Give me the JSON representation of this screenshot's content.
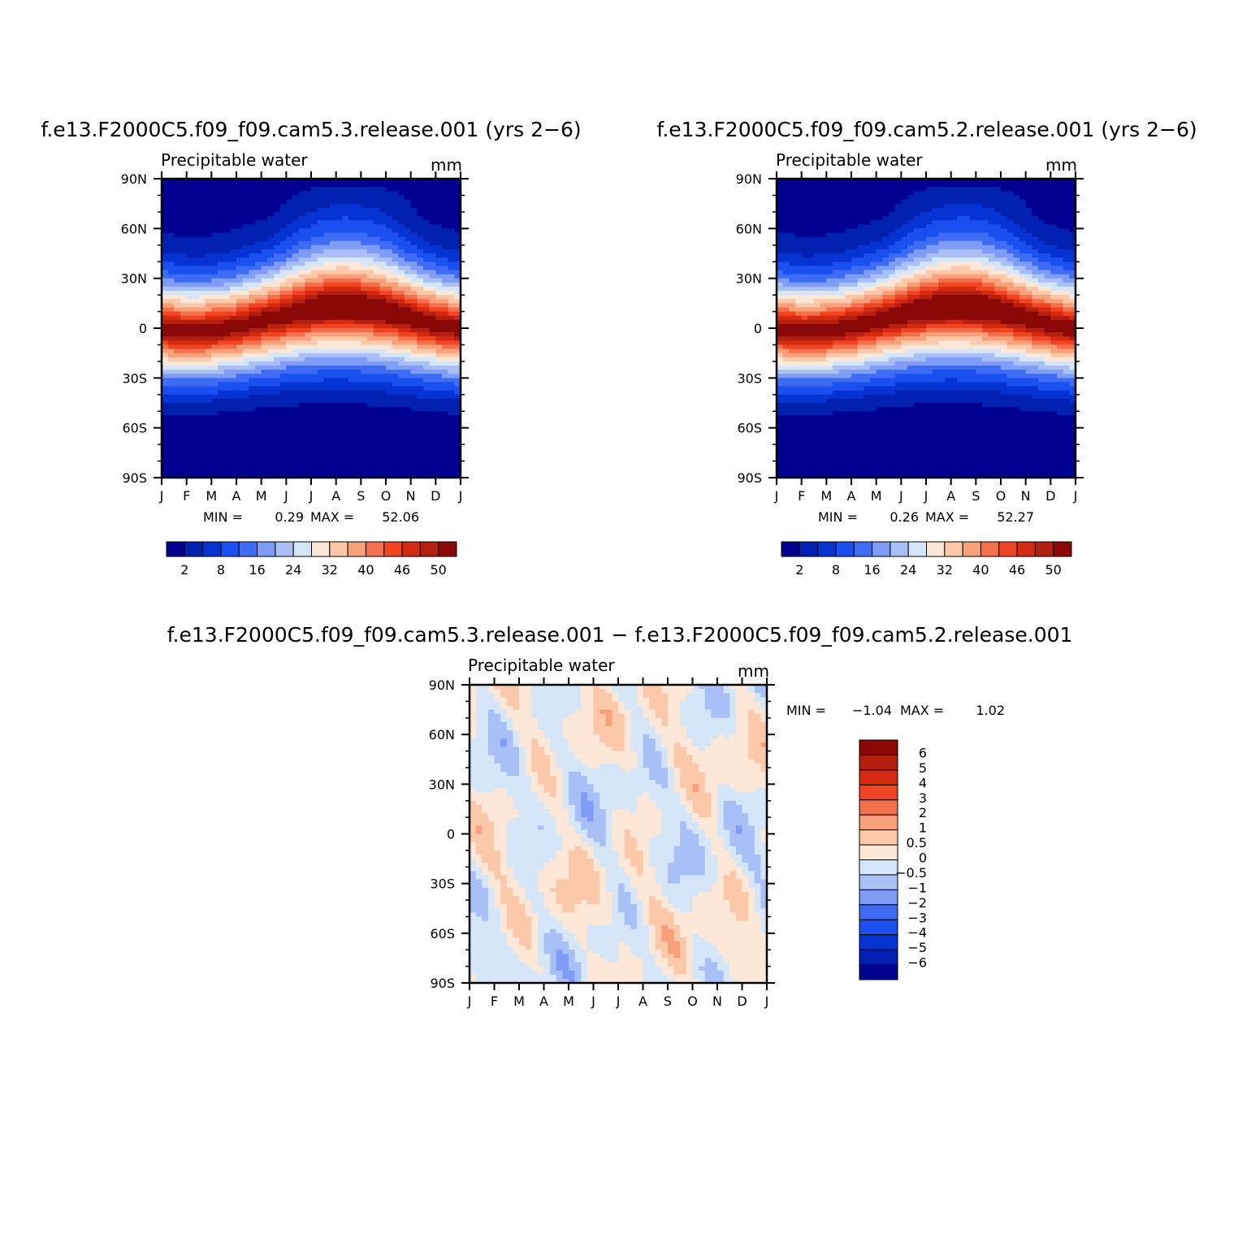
{
  "chart_data": [
    {
      "type": "heatmap",
      "case_title": "f.e13.F2000C5.f09_f09.cam5.3.release.001 (yrs 2−6)",
      "left_label": "Precipitable water",
      "right_label": "mm",
      "x_ticks": [
        "J",
        "F",
        "M",
        "A",
        "M",
        "J",
        "J",
        "A",
        "S",
        "O",
        "N",
        "D",
        "J"
      ],
      "y_ticks": [
        "90N",
        "60N",
        "30N",
        "0",
        "30S",
        "60S",
        "90S"
      ],
      "ylim": [
        -90,
        90
      ],
      "min_label": "MIN =",
      "min_value": "0.29",
      "max_label": "MAX =",
      "max_value": "52.06",
      "zmin": 0.29,
      "zmax": 52.06,
      "colorbar_labels": [
        "2",
        "8",
        "16",
        "24",
        "32",
        "40",
        "46",
        "50"
      ],
      "colorbar_colors": [
        "#000090",
        "#0020b0",
        "#0733d3",
        "#1a4ff0",
        "#3e6cf5",
        "#7f9cf7",
        "#a9c0f7",
        "#d6e6f9",
        "#fde8d8",
        "#fcc8aa",
        "#f7a07a",
        "#f2704c",
        "#f14422",
        "#d42a12",
        "#b51f10",
        "#8a0808"
      ]
    },
    {
      "type": "heatmap",
      "case_title": "f.e13.F2000C5.f09_f09.cam5.2.release.001 (yrs 2−6)",
      "left_label": "Precipitable water",
      "right_label": "mm",
      "x_ticks": [
        "J",
        "F",
        "M",
        "A",
        "M",
        "J",
        "J",
        "A",
        "S",
        "O",
        "N",
        "D",
        "J"
      ],
      "y_ticks": [
        "90N",
        "60N",
        "30N",
        "0",
        "30S",
        "60S",
        "90S"
      ],
      "ylim": [
        -90,
        90
      ],
      "min_label": "MIN =",
      "min_value": "0.26",
      "max_label": "MAX =",
      "max_value": "52.27",
      "zmin": 0.26,
      "zmax": 52.27,
      "colorbar_labels": [
        "2",
        "8",
        "16",
        "24",
        "32",
        "40",
        "46",
        "50"
      ],
      "colorbar_colors": [
        "#000090",
        "#0020b0",
        "#0733d3",
        "#1a4ff0",
        "#3e6cf5",
        "#7f9cf7",
        "#a9c0f7",
        "#d6e6f9",
        "#fde8d8",
        "#fcc8aa",
        "#f7a07a",
        "#f2704c",
        "#f14422",
        "#d42a12",
        "#b51f10",
        "#8a0808"
      ]
    },
    {
      "type": "heatmap",
      "case_title": "f.e13.F2000C5.f09_f09.cam5.3.release.001 − f.e13.F2000C5.f09_f09.cam5.2.release.001",
      "left_label": "Precipitable water",
      "right_label": "mm",
      "x_ticks": [
        "J",
        "F",
        "M",
        "A",
        "M",
        "J",
        "J",
        "A",
        "S",
        "O",
        "N",
        "D",
        "J"
      ],
      "y_ticks": [
        "90N",
        "60N",
        "30N",
        "0",
        "30S",
        "60S",
        "90S"
      ],
      "ylim": [
        -90,
        90
      ],
      "min_label": "MIN =",
      "min_value": "−1.04",
      "max_label": "MAX =",
      "max_value": "1.02",
      "zmin": -1.04,
      "zmax": 1.02,
      "colorbar_labels": [
        "6",
        "5",
        "4",
        "3",
        "2",
        "1",
        "0.5",
        "0",
        "−0.5",
        "−1",
        "−2",
        "−3",
        "−4",
        "−5",
        "−6"
      ],
      "colorbar_colors": [
        "#8a0808",
        "#b51f10",
        "#d42a12",
        "#f14422",
        "#f2704c",
        "#f7a07a",
        "#fcc8aa",
        "#fde8d8",
        "#d6e6f9",
        "#a9c0f7",
        "#7f9cf7",
        "#3e6cf5",
        "#1a4ff0",
        "#0733d3",
        "#0020b0",
        "#000090"
      ]
    }
  ]
}
